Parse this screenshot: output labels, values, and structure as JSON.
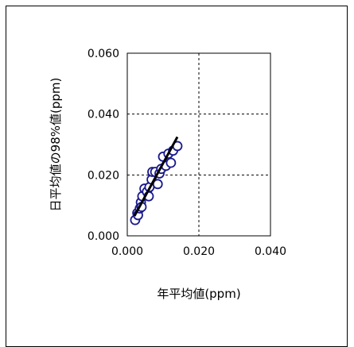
{
  "chart_data": {
    "type": "scatter",
    "xlabel": "年平均値(ppm)",
    "ylabel": "日平均値の98%値(ppm)",
    "xlim": [
      0,
      0.04
    ],
    "ylim": [
      0,
      0.06
    ],
    "x_ticks": [
      0,
      0.02,
      0.04
    ],
    "y_ticks": [
      0,
      0.02,
      0.04,
      0.06
    ],
    "x_tick_labels": [
      "0.000",
      "0.020",
      "0.040"
    ],
    "y_tick_labels": [
      "0.000",
      "0.020",
      "0.040",
      "0.060"
    ],
    "grid": true,
    "grid_style": "dashed",
    "series": [
      {
        "marker": "open-circle",
        "color": "#1a1a8c",
        "points": [
          [
            0.0022,
            0.0052
          ],
          [
            0.0028,
            0.0075
          ],
          [
            0.003,
            0.0068
          ],
          [
            0.0035,
            0.009
          ],
          [
            0.0038,
            0.011
          ],
          [
            0.004,
            0.0095
          ],
          [
            0.0042,
            0.013
          ],
          [
            0.0048,
            0.0155
          ],
          [
            0.0055,
            0.0145
          ],
          [
            0.006,
            0.013
          ],
          [
            0.0062,
            0.016
          ],
          [
            0.0068,
            0.0185
          ],
          [
            0.007,
            0.021
          ],
          [
            0.0078,
            0.021
          ],
          [
            0.0085,
            0.017
          ],
          [
            0.009,
            0.0205
          ],
          [
            0.0095,
            0.022
          ],
          [
            0.01,
            0.026
          ],
          [
            0.0108,
            0.023
          ],
          [
            0.0115,
            0.027
          ],
          [
            0.0122,
            0.024
          ],
          [
            0.0128,
            0.028
          ],
          [
            0.014,
            0.0295
          ]
        ]
      }
    ],
    "trendline": {
      "color": "#000000",
      "x": [
        0.002,
        0.014
      ],
      "y": [
        0.0065,
        0.0325
      ]
    }
  }
}
